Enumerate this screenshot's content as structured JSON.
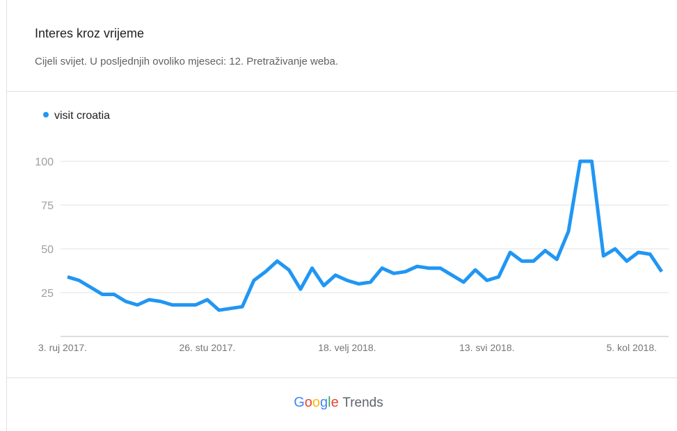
{
  "header": {
    "title": "Interes kroz vrijeme",
    "subtitle": "Cijeli svijet. U posljednjih ovoliko mjeseci: 12. Pretraživanje weba."
  },
  "colors": {
    "series": "#2196F3",
    "grid": "#e0e0e0"
  },
  "footer": {
    "logo_letters": [
      "G",
      "o",
      "o",
      "g",
      "l",
      "e"
    ],
    "suffix": "Trends"
  },
  "chart_data": {
    "type": "line",
    "series": [
      {
        "name": "visit croatia",
        "values": [
          34,
          32,
          28,
          24,
          24,
          20,
          18,
          21,
          20,
          18,
          18,
          18,
          21,
          15,
          16,
          17,
          32,
          37,
          43,
          38,
          27,
          39,
          29,
          35,
          32,
          30,
          31,
          39,
          36,
          37,
          40,
          39,
          39,
          35,
          31,
          38,
          32,
          34,
          48,
          43,
          43,
          49,
          44,
          60,
          100,
          100,
          46,
          50,
          43,
          48,
          47,
          37
        ]
      }
    ],
    "x_labels": [
      {
        "label": "3. ruj 2017.",
        "index": 0
      },
      {
        "label": "26. stu 2017.",
        "index": 12
      },
      {
        "label": "18. velj 2018.",
        "index": 24
      },
      {
        "label": "13. svi 2018.",
        "index": 36
      },
      {
        "label": "5. kol 2018.",
        "index": 48
      }
    ],
    "y_ticks": [
      25,
      50,
      75,
      100
    ],
    "ylim": [
      0,
      100
    ],
    "grid": true,
    "legend_position": "top-left"
  }
}
